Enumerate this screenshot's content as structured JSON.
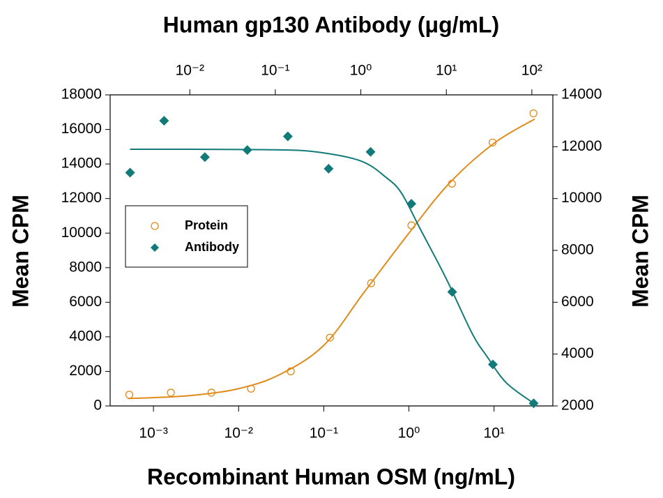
{
  "chart_data": {
    "type": "scatter",
    "title": "Human gp130 Antibody (μg/mL)",
    "x_label": "Recombinant Human OSM (ng/mL)",
    "y_label": "Mean CPM",
    "y2_label": "Mean CPM",
    "xscale": "log",
    "x2scale": "log",
    "xlim": [
      0.00031,
      49
    ],
    "xticks": [
      {
        "value": 0.001,
        "label": "10⁻³"
      },
      {
        "value": 0.01,
        "label": "10⁻²"
      },
      {
        "value": 0.1,
        "label": "10⁻¹"
      },
      {
        "value": 1,
        "label": "10⁰"
      },
      {
        "value": 10,
        "label": "10¹"
      }
    ],
    "x2lim": [
      0.00117,
      176
    ],
    "x2ticks": [
      {
        "value": 0.01,
        "label": "10⁻²"
      },
      {
        "value": 0.1,
        "label": "10⁻¹"
      },
      {
        "value": 1,
        "label": "10⁰"
      },
      {
        "value": 10,
        "label": "10¹"
      },
      {
        "value": 100,
        "label": "10²"
      }
    ],
    "ylim": [
      0,
      18000
    ],
    "yticks": [
      0,
      2000,
      4000,
      6000,
      8000,
      10000,
      12000,
      14000,
      16000,
      18000
    ],
    "y2lim": [
      2000,
      14000
    ],
    "y2ticks": [
      2000,
      4000,
      6000,
      8000,
      10000,
      12000,
      14000
    ],
    "legend": "center-left",
    "series": [
      {
        "name": "Protein",
        "color": "#e08a1a",
        "marker": "open-circle",
        "x": [
          0.00052,
          0.0016,
          0.0048,
          0.014,
          0.041,
          0.118,
          0.36,
          1.07,
          3.2,
          9.6,
          29
        ],
        "values": [
          650,
          770,
          770,
          1000,
          2000,
          3950,
          7100,
          10450,
          12860,
          15240,
          16930
        ],
        "fit_x": [
          0.0005,
          0.001,
          0.003,
          0.01,
          0.03,
          0.1,
          0.3,
          1,
          3,
          10,
          30
        ],
        "fit_values": [
          430,
          480,
          620,
          1000,
          1800,
          3500,
          6600,
          10000,
          12900,
          15200,
          16600
        ]
      },
      {
        "name": "Antibody",
        "color": "#127a78",
        "marker": "diamond",
        "xaxis": "x2",
        "axis": "y2",
        "x": [
          0.002,
          0.005,
          0.015,
          0.047,
          0.14,
          0.42,
          1.3,
          3.9,
          11.7,
          35,
          105
        ],
        "values": [
          11000,
          13000,
          11600,
          11870,
          12400,
          11150,
          11800,
          9800,
          6400,
          3600,
          2100
        ],
        "fit_x": [
          0.002,
          0.01,
          0.1,
          0.3,
          1,
          2,
          3,
          5,
          10,
          20,
          30,
          50,
          100
        ],
        "fit_values": [
          11900,
          11900,
          11880,
          11800,
          11450,
          10800,
          10200,
          8800,
          6900,
          4800,
          3900,
          2900,
          2150
        ]
      }
    ]
  }
}
